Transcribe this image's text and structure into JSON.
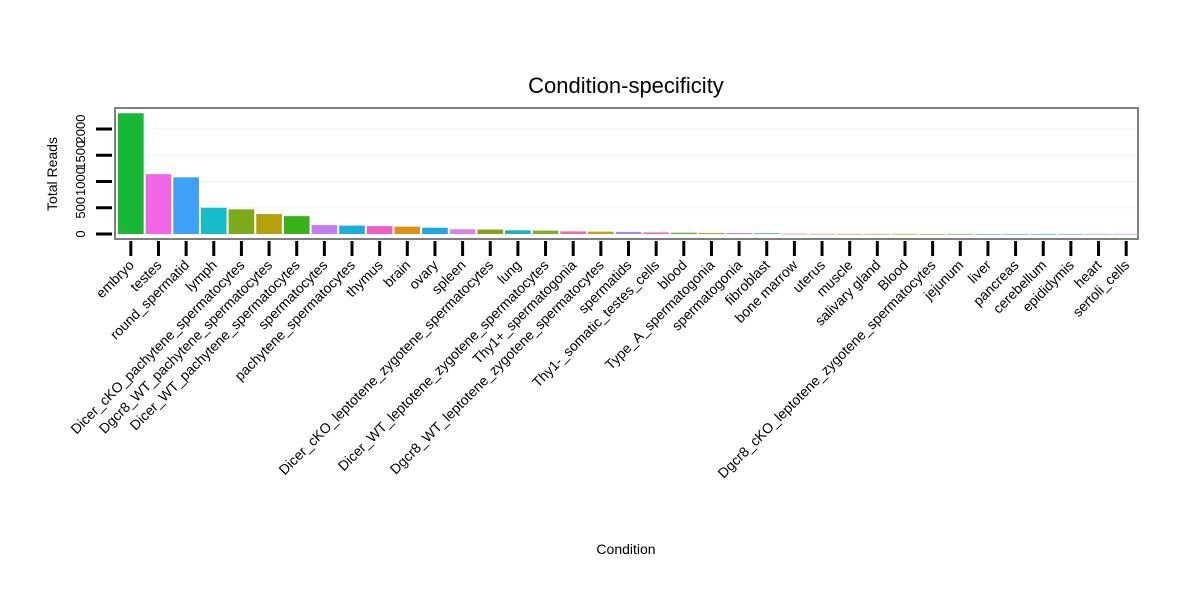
{
  "chart_data": {
    "type": "bar",
    "title": "Condition-specificity",
    "xlabel": "Condition",
    "ylabel": "Total Reads",
    "ylim": [
      0,
      2400
    ],
    "yticks": [
      0,
      500,
      1000,
      1500,
      2000
    ],
    "ytick_labels": [
      "0",
      "500",
      "1000",
      "1500",
      "2000"
    ],
    "legend": "none",
    "grid": true,
    "categories": [
      "embryo",
      "testes",
      "round_spermatid",
      "lymph",
      "Dicer_cKO_pachytene_spermatocytes",
      "Dgcr8_WT_pachytene_spermatocytes",
      "Dicer_WT_pachytene_spermatocytes",
      "spermatocytes",
      "pachytene_spermatocytes",
      "thymus",
      "brain",
      "ovary",
      "spleen",
      "Dicer_cKO_leptotene_zygotene_spermatocytes",
      "lung",
      "Dicer_WT_leptotene_zygotene_spermatocytes",
      "Thy1+_spermatogonia",
      "Dgcr8_WT_leptotene_zygotene_spermatocytes",
      "spermatids",
      "Thy1-_somatic_testes_cells",
      "blood",
      "Type_A_spermatogonia",
      "spermatogonia",
      "fibroblast",
      "bone marrow",
      "uterus",
      "muscle",
      "salivary gland",
      "Blood",
      "Dgcr8_cKO_leptotene_zygotene_spermatocytes",
      "jejunum",
      "liver",
      "pancreas",
      "cerebellum",
      "epididymis",
      "heart",
      "sertoli_cells"
    ],
    "values": [
      2300,
      1140,
      1080,
      500,
      470,
      380,
      340,
      170,
      160,
      150,
      140,
      120,
      90,
      85,
      70,
      65,
      50,
      45,
      40,
      30,
      25,
      20,
      18,
      15,
      5,
      3,
      2,
      2,
      2,
      1,
      1,
      1,
      1,
      1,
      1,
      1,
      1
    ],
    "colors": [
      "#17b834",
      "#f066e6",
      "#3ea0f7",
      "#16bcc9",
      "#7caa1a",
      "#b4a00c",
      "#39b21c",
      "#c57cf3",
      "#1aaed8",
      "#ee5fc4",
      "#d99117",
      "#1ba8e6",
      "#d883eb",
      "#8c9e18",
      "#1ab3b8",
      "#7eb020",
      "#f06aa4",
      "#c0a418",
      "#a58af2",
      "#f26b9a",
      "#60b042",
      "#c99a14",
      "#e076d8",
      "#2dbab0",
      "#f07070",
      "#ee7c5c",
      "#dd8c1e",
      "#c49a10",
      "#a4a412",
      "#78ae16",
      "#3cb51e",
      "#1ab67a",
      "#1ab8b0",
      "#1ab0dc",
      "#4d9ef4",
      "#9c8ef6",
      "#dc7cf0"
    ]
  }
}
